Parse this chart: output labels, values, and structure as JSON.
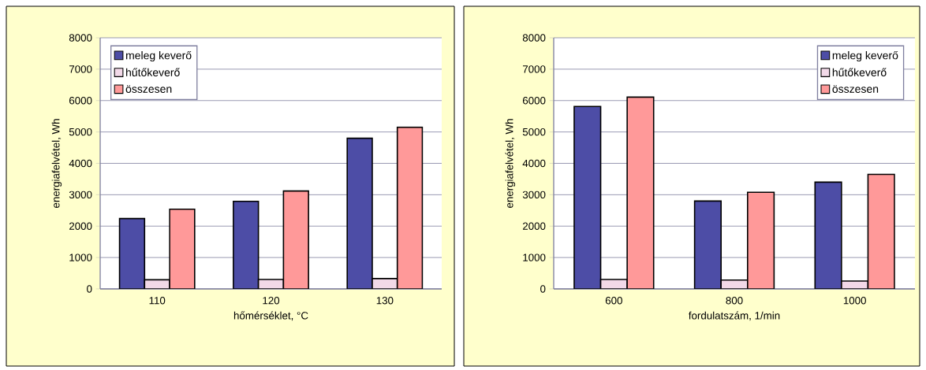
{
  "chart_data": [
    {
      "type": "bar",
      "categories": [
        "110",
        "120",
        "130"
      ],
      "xlabel": "hőmérséklet, °C",
      "ylabel": "energiafelvétel, Wh",
      "ylim": [
        0,
        8000
      ],
      "yticks": [
        0,
        1000,
        2000,
        3000,
        4000,
        5000,
        6000,
        7000,
        8000
      ],
      "grid": "y",
      "legend": "top left",
      "series": [
        {
          "name": "meleg keverő",
          "color": "#4d4da6",
          "values": [
            2240,
            2790,
            4800
          ]
        },
        {
          "name": "hűtőkeverő",
          "color": "#f2d9e8",
          "values": [
            290,
            300,
            330
          ]
        },
        {
          "name": "összesen",
          "color": "#ff9999",
          "values": [
            2540,
            3120,
            5150
          ]
        }
      ]
    },
    {
      "type": "bar",
      "categories": [
        "600",
        "800",
        "1000"
      ],
      "xlabel": "fordulatszám, 1/min",
      "ylabel": "energiafelvétel, Wh",
      "ylim": [
        0,
        8000
      ],
      "yticks": [
        0,
        1000,
        2000,
        3000,
        4000,
        5000,
        6000,
        7000,
        8000
      ],
      "grid": "y",
      "legend": "top right",
      "series": [
        {
          "name": "meleg keverő",
          "color": "#4d4da6",
          "values": [
            5810,
            2800,
            3400
          ]
        },
        {
          "name": "hűtőkeverő",
          "color": "#f2d9e8",
          "values": [
            300,
            280,
            250
          ]
        },
        {
          "name": "összesen",
          "color": "#ff9999",
          "values": [
            6110,
            3080,
            3650
          ]
        }
      ]
    }
  ]
}
